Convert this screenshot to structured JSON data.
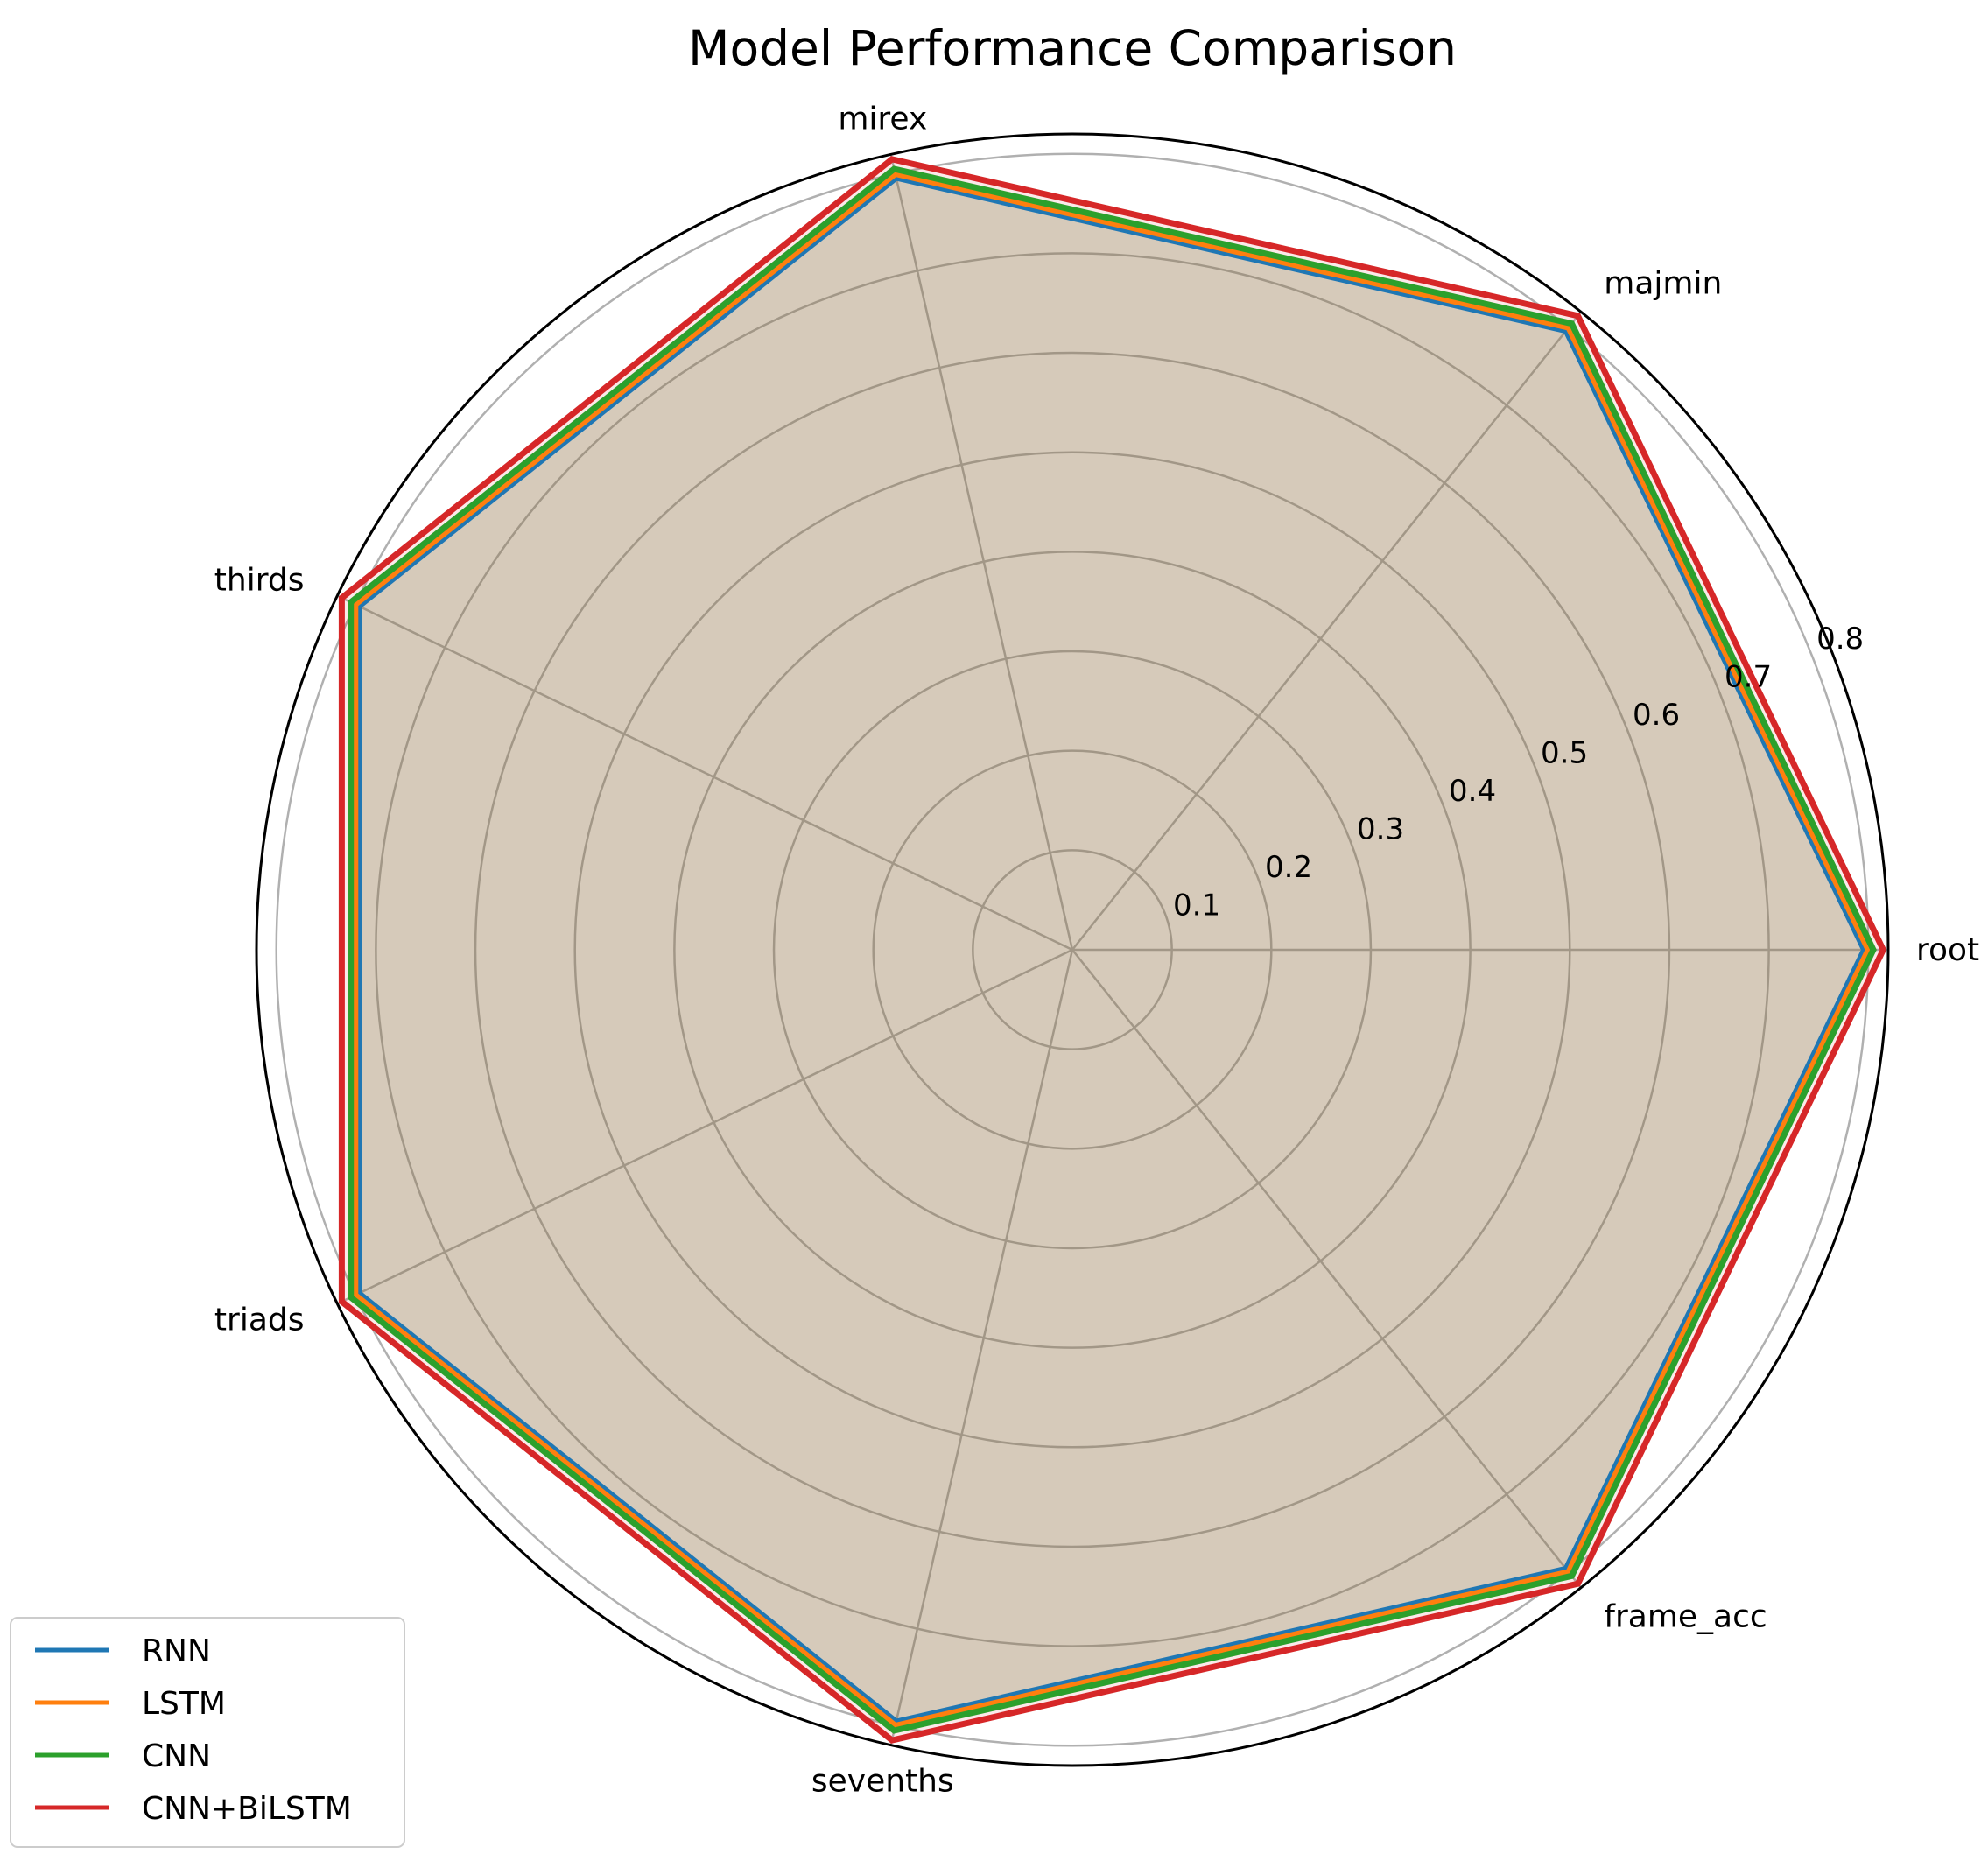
{
  "chart_data": {
    "type": "radar",
    "title": "Model Performance Comparison",
    "categories": [
      "root",
      "majmin",
      "mirex",
      "thirds",
      "triads",
      "sevenths",
      "frame_acc"
    ],
    "radial_ticks": [
      "0.1",
      "0.2",
      "0.3",
      "0.4",
      "0.5",
      "0.6",
      "0.7",
      "0.8"
    ],
    "rlim": [
      0,
      0.82
    ],
    "grid": true,
    "legend_position": "lower-left",
    "series": [
      {
        "name": "RNN",
        "color": "#1f77b4",
        "values": [
          0.796,
          0.796,
          0.796,
          0.796,
          0.796,
          0.796,
          0.796
        ]
      },
      {
        "name": "LSTM",
        "color": "#ff7f0e",
        "values": [
          0.8,
          0.8,
          0.8,
          0.8,
          0.8,
          0.8,
          0.8
        ]
      },
      {
        "name": "CNN",
        "color": "#2ca02c",
        "values": [
          0.805,
          0.805,
          0.805,
          0.805,
          0.805,
          0.805,
          0.805
        ]
      },
      {
        "name": "CNN+BiLSTM",
        "color": "#d62728",
        "values": [
          0.815,
          0.815,
          0.815,
          0.815,
          0.815,
          0.815,
          0.815
        ]
      }
    ]
  }
}
